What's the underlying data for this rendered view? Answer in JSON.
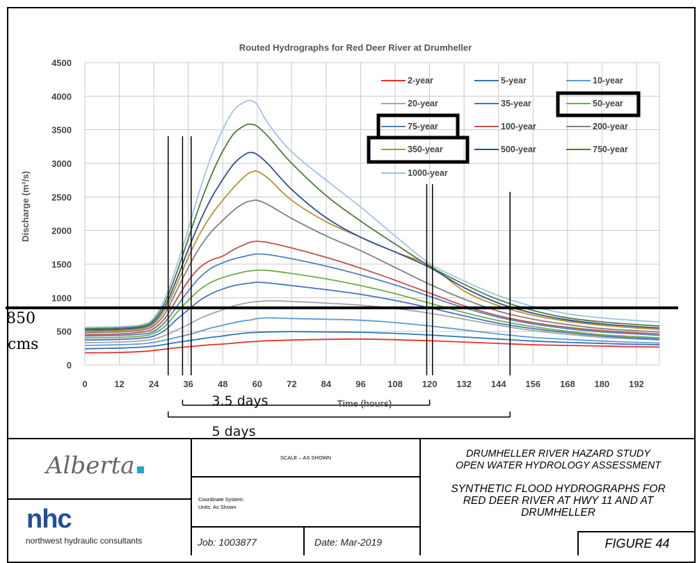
{
  "chart_data": {
    "type": "line",
    "title": "Routed Hydrographs for Red Deer River at Drumheller",
    "xlabel": "Time (hours)",
    "ylabel": "Discharge (m³/s)",
    "xlim": [
      0,
      200
    ],
    "ylim": [
      0,
      4500
    ],
    "xticks": [
      0,
      12,
      24,
      36,
      48,
      60,
      72,
      84,
      96,
      108,
      120,
      132,
      144,
      156,
      168,
      180,
      192
    ],
    "yticks": [
      0,
      500,
      1000,
      1500,
      2000,
      2500,
      3000,
      3500,
      4000,
      4500
    ],
    "grid": true,
    "legend_position": "top-right",
    "x": [
      0,
      12,
      20,
      24,
      28,
      32,
      36,
      40,
      44,
      48,
      52,
      56,
      58,
      60,
      64,
      72,
      84,
      96,
      108,
      120,
      132,
      144,
      156,
      168,
      180,
      192,
      200
    ],
    "series": [
      {
        "name": "2-year",
        "color": "#e8302a",
        "values": [
          180,
          185,
          200,
          215,
          235,
          255,
          270,
          285,
          300,
          310,
          325,
          340,
          345,
          350,
          360,
          370,
          380,
          385,
          375,
          360,
          340,
          320,
          300,
          290,
          280,
          270,
          265
        ]
      },
      {
        "name": "5-year",
        "color": "#2e75b6",
        "values": [
          240,
          250,
          265,
          280,
          305,
          335,
          360,
          385,
          410,
          430,
          455,
          475,
          480,
          485,
          490,
          495,
          490,
          485,
          470,
          445,
          415,
          385,
          355,
          335,
          320,
          305,
          300
        ]
      },
      {
        "name": "10-year",
        "color": "#5b9bd5",
        "values": [
          290,
          300,
          315,
          335,
          370,
          410,
          450,
          500,
          550,
          590,
          630,
          660,
          670,
          690,
          700,
          690,
          680,
          665,
          630,
          580,
          520,
          460,
          410,
          380,
          355,
          335,
          325
        ]
      },
      {
        "name": "20-year",
        "color": "#a5a5a5",
        "values": [
          330,
          340,
          360,
          385,
          440,
          520,
          600,
          690,
          760,
          820,
          880,
          920,
          935,
          940,
          955,
          945,
          920,
          890,
          840,
          770,
          680,
          590,
          510,
          455,
          410,
          385,
          370
        ]
      },
      {
        "name": "35-year",
        "color": "#4472c4",
        "values": [
          370,
          380,
          400,
          430,
          520,
          680,
          820,
          960,
          1060,
          1130,
          1180,
          1210,
          1220,
          1230,
          1220,
          1180,
          1120,
          1050,
          960,
          850,
          730,
          620,
          540,
          480,
          430,
          400,
          385
        ]
      },
      {
        "name": "50-year",
        "color": "#70ad47",
        "values": [
          400,
          410,
          430,
          470,
          580,
          780,
          960,
          1120,
          1230,
          1300,
          1350,
          1390,
          1400,
          1410,
          1405,
          1360,
          1280,
          1180,
          1060,
          920,
          780,
          660,
          570,
          500,
          450,
          420,
          405
        ]
      },
      {
        "name": "75-year",
        "color": "#4f81bd",
        "values": [
          430,
          440,
          460,
          500,
          640,
          870,
          1100,
          1300,
          1440,
          1520,
          1580,
          1620,
          1640,
          1650,
          1640,
          1580,
          1470,
          1340,
          1190,
          1020,
          850,
          710,
          610,
          540,
          490,
          460,
          440
        ]
      },
      {
        "name": "100-year",
        "color": "#c0504d",
        "values": [
          450,
          460,
          490,
          540,
          700,
          980,
          1250,
          1450,
          1560,
          1620,
          1720,
          1800,
          1830,
          1840,
          1820,
          1740,
          1600,
          1440,
          1260,
          1070,
          880,
          730,
          630,
          560,
          510,
          480,
          460
        ]
      },
      {
        "name": "200-year",
        "color": "#7f7f7f",
        "values": [
          480,
          490,
          520,
          580,
          770,
          1110,
          1450,
          1750,
          1980,
          2150,
          2310,
          2420,
          2440,
          2450,
          2380,
          2180,
          1920,
          1700,
          1450,
          1200,
          980,
          800,
          680,
          600,
          540,
          510,
          490
        ]
      },
      {
        "name": "350-year",
        "color": "#b8902f",
        "values": [
          500,
          510,
          540,
          610,
          830,
          1200,
          1600,
          1950,
          2230,
          2450,
          2650,
          2820,
          2870,
          2880,
          2770,
          2450,
          2130,
          1900,
          1680,
          1480,
          1100,
          880,
          740,
          650,
          590,
          550,
          530
        ]
      },
      {
        "name": "500-year",
        "color": "#2f4f8f",
        "values": [
          520,
          530,
          560,
          640,
          880,
          1280,
          1720,
          2130,
          2480,
          2760,
          3000,
          3140,
          3160,
          3130,
          2980,
          2610,
          2190,
          1900,
          1680,
          1450,
          1150,
          920,
          770,
          670,
          610,
          570,
          550
        ]
      },
      {
        "name": "750-year",
        "color": "#4e7a3a",
        "values": [
          540,
          550,
          580,
          670,
          940,
          1380,
          1880,
          2380,
          2820,
          3180,
          3450,
          3570,
          3580,
          3550,
          3390,
          3000,
          2520,
          2140,
          1800,
          1470,
          1200,
          970,
          810,
          700,
          640,
          600,
          580
        ]
      },
      {
        "name": "1000-year",
        "color": "#9dc3e6",
        "values": [
          560,
          570,
          600,
          700,
          1000,
          1480,
          2020,
          2600,
          3100,
          3500,
          3800,
          3920,
          3930,
          3870,
          3580,
          3170,
          2750,
          2350,
          1920,
          1510,
          1250,
          1030,
          870,
          760,
          700,
          660,
          640
        ]
      }
    ],
    "highlighted_series": [
      "50-year",
      "75-year",
      "350-year"
    ],
    "threshold": {
      "label_line1": "850",
      "label_line2": "cms",
      "value": 850
    },
    "annotations": [
      {
        "label": "3.5 days",
        "x_start": 34,
        "x_end": 120
      },
      {
        "label": "5 days",
        "x_start": 29,
        "x_end": 148
      }
    ],
    "vertical_markers": [
      29,
      34,
      37,
      119,
      121,
      148
    ]
  },
  "title_block": {
    "logo_alberta": "Alberta",
    "logo_nhc": "nhc",
    "logo_nhc_sub": "northwest hydraulic consultants",
    "scale": "SCALE – AS SHOWN",
    "coord_line1": "Coordinate System:",
    "coord_line2": "Units: As Shown",
    "job": "Job: 1003877",
    "date": "Date: Mar-2019",
    "study_line1": "DRUMHELLER RIVER HAZARD STUDY",
    "study_line2": "OPEN WATER HYDROLOGY ASSESSMENT",
    "desc_line1": "SYNTHETIC FLOOD HYDROGRAPHS FOR",
    "desc_line2": "RED DEER RIVER AT HWY 11 AND AT",
    "desc_line3": "DRUMHELLER",
    "figure": "FIGURE 44",
    "accent_color": "#1f4e9c",
    "alberta_square_color": "#29a3c7"
  }
}
